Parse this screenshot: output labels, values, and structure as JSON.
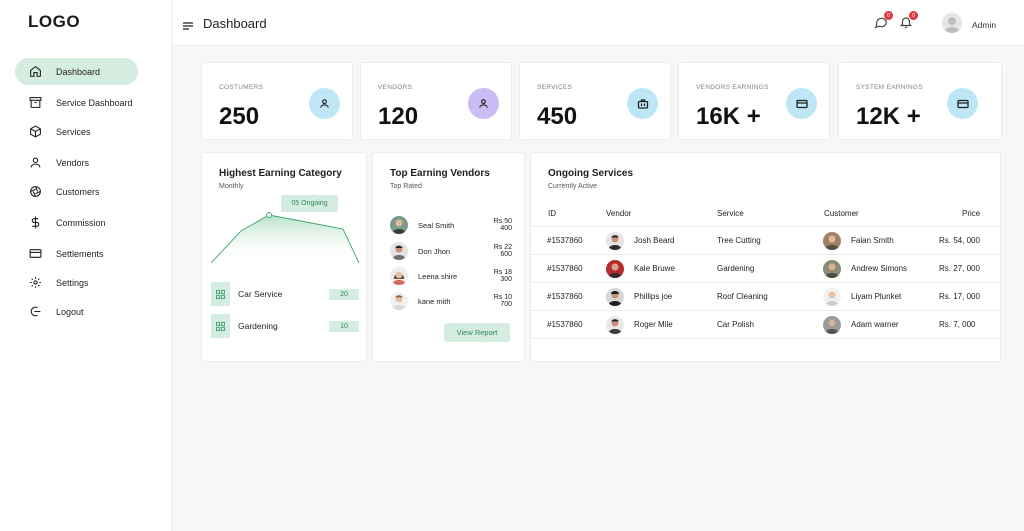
{
  "sidebar": {
    "logo": "LOGO",
    "items": [
      {
        "label": "Dashboard",
        "icon": "home-icon",
        "active": true
      },
      {
        "label": "Service Dashboard",
        "icon": "archive-icon",
        "active": false
      },
      {
        "label": "Services",
        "icon": "box-icon",
        "active": false
      },
      {
        "label": "Vendors",
        "icon": "user-icon",
        "active": false
      },
      {
        "label": "Customers",
        "icon": "aperture-icon",
        "active": false
      },
      {
        "label": "Commission",
        "icon": "dollar-icon",
        "active": false
      },
      {
        "label": "Settlements",
        "icon": "credit-card-icon",
        "active": false
      },
      {
        "label": "Settings",
        "icon": "gear-icon",
        "active": false
      },
      {
        "label": "Logout",
        "icon": "logout-icon",
        "active": false
      }
    ]
  },
  "header": {
    "title": "Dashboard",
    "messages_badge": "0",
    "notifications_badge": "0",
    "user_name": "Admin"
  },
  "stats": [
    {
      "label": "COSTUMERS",
      "value": "250",
      "icon": "user-icon",
      "color": "#bfe6f6"
    },
    {
      "label": "VENDORS",
      "value": "120",
      "icon": "user-icon",
      "color": "#cbbdf3"
    },
    {
      "label": "SERVICES",
      "value": "450",
      "icon": "briefcase-icon",
      "color": "#bfe6f6"
    },
    {
      "label": "VENDORS EARNINGS",
      "value": "16K +",
      "icon": "card-icon",
      "color": "#bfe6f6"
    },
    {
      "label": "SYSTEM EARNINGS",
      "value": "12K +",
      "icon": "card-icon",
      "color": "#bfe6f6"
    }
  ],
  "earning_category": {
    "title": "Highest Earning Category",
    "subtitle": "Monthly",
    "tooltip": "05 Ongoing",
    "categories": [
      {
        "label": "Car Service",
        "count": "20"
      },
      {
        "label": "Gardening",
        "count": "10"
      }
    ]
  },
  "top_vendors": {
    "title": "Top Earning Vendors",
    "subtitle": "Top Rated",
    "vendors": [
      {
        "name": "Seal Smith",
        "amount": "Rs 50 400"
      },
      {
        "name": "Don Jhon",
        "amount": "Rs 22 600"
      },
      {
        "name": "Leena shire",
        "amount": "Rs 18 300"
      },
      {
        "name": "kane mith",
        "amount": "Rs 10 700"
      }
    ],
    "button_label": "View Report"
  },
  "ongoing_services": {
    "title": "Ongoing Services",
    "subtitle": "Currently Active",
    "columns": [
      "ID",
      "Vendor",
      "Service",
      "Customer",
      "Price"
    ],
    "rows": [
      {
        "id": "#1537860",
        "vendor": "Josh Beard",
        "service": "Tree Cutting",
        "customer": "Falan Smith",
        "price": "Rs. 54, 000"
      },
      {
        "id": "#1537860",
        "vendor": "Kale Bruwe",
        "service": "Gardening",
        "customer": "Andrew Simons",
        "price": "Rs. 27, 000"
      },
      {
        "id": "#1537860",
        "vendor": "Phillips joe",
        "service": "Roof Cleaning",
        "customer": "Liyam Plunket",
        "price": "Rs. 17, 000"
      },
      {
        "id": "#1537860",
        "vendor": "Roger Mile",
        "service": "Car Polish",
        "customer": "Adam  warner",
        "price": "Rs. 7, 000"
      }
    ]
  },
  "colors": {
    "accent_green": "#d5ece0",
    "accent_green_text": "#2d8a55",
    "badge_red": "#e0383e"
  }
}
